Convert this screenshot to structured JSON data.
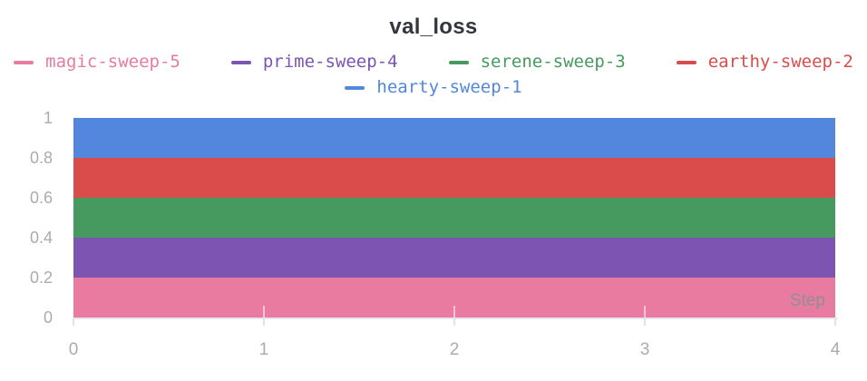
{
  "chart_data": {
    "type": "area",
    "title": "val_loss",
    "xlabel": "Step",
    "ylabel": "",
    "xlim": [
      0,
      4
    ],
    "ylim": [
      0,
      1
    ],
    "x": [
      0,
      1,
      2,
      3,
      4
    ],
    "x_tick_labels": [
      "0",
      "1",
      "2",
      "3",
      "4"
    ],
    "y_tick_labels": [
      "0",
      "0.2",
      "0.4",
      "0.6",
      "0.8",
      "1"
    ],
    "grid": false,
    "legend_position": "top, two centered rows",
    "note": "Five sweep runs with constant val_loss rendered as stacked horizontal color bands, each 0.2 thick, spanning steps 0 to 4",
    "series": [
      {
        "name": "magic-sweep-5",
        "color": "#E87B9F",
        "band": [
          0.0,
          0.2
        ],
        "values": [
          0.2,
          0.2,
          0.2,
          0.2,
          0.2
        ]
      },
      {
        "name": "prime-sweep-4",
        "color": "#7D54B2",
        "band": [
          0.2,
          0.4
        ],
        "values": [
          0.4,
          0.4,
          0.4,
          0.4,
          0.4
        ]
      },
      {
        "name": "serene-sweep-3",
        "color": "#479A5F",
        "band": [
          0.4,
          0.6
        ],
        "values": [
          0.6,
          0.6,
          0.6,
          0.6,
          0.6
        ]
      },
      {
        "name": "earthy-sweep-2",
        "color": "#DA4C4C",
        "band": [
          0.6,
          0.8
        ],
        "values": [
          0.8,
          0.8,
          0.8,
          0.8,
          0.8
        ]
      },
      {
        "name": "hearty-sweep-1",
        "color": "#5387DD",
        "band": [
          0.8,
          1.0
        ],
        "values": [
          1.0,
          1.0,
          1.0,
          1.0,
          1.0
        ]
      }
    ]
  },
  "legend": {
    "items": [
      {
        "label": "magic-sweep-5",
        "color": "#E87B9F"
      },
      {
        "label": "prime-sweep-4",
        "color": "#7D54B2"
      },
      {
        "label": "serene-sweep-3",
        "color": "#479A5F"
      },
      {
        "label": "earthy-sweep-2",
        "color": "#DA4C4C"
      },
      {
        "label": "hearty-sweep-1",
        "color": "#5387DD"
      }
    ]
  },
  "appearance": {
    "background": "#FFFFFF",
    "title_color": "#33373D",
    "axis_text_color": "#A9ABB1",
    "axis_line_color": "#E5E5EA",
    "step_label_color": "#8F8F96"
  }
}
